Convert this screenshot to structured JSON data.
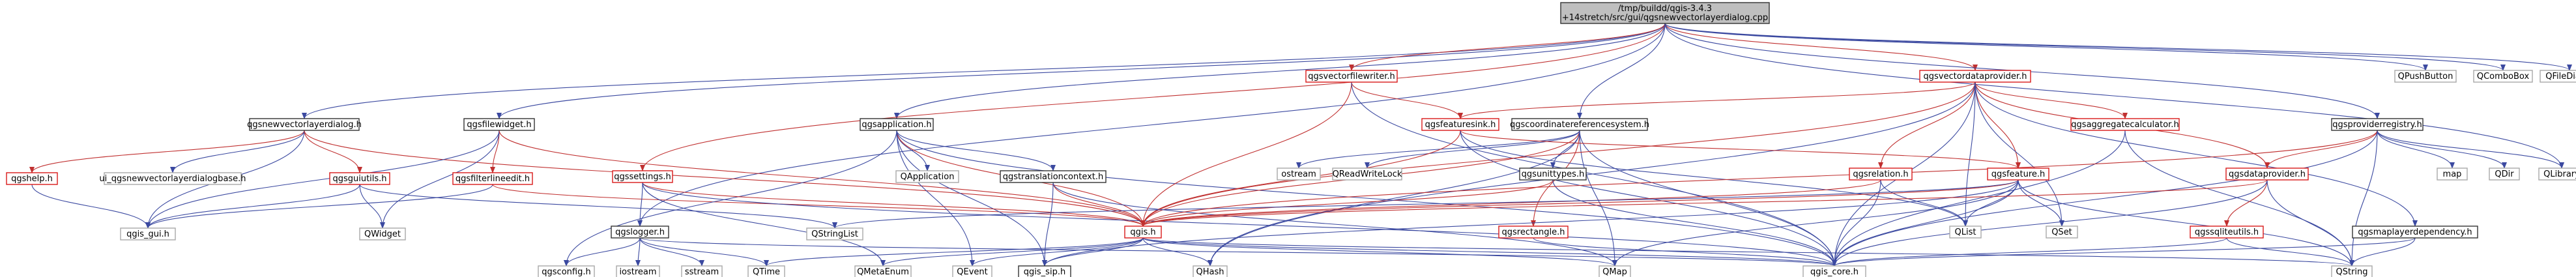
{
  "colors": {
    "edge": "#3b49a0",
    "edge_red": "#c03030",
    "border_black": "#333333",
    "border_grey": "#a8a8a8",
    "border_red": "#d81a1a",
    "root_fill": "#bfbfbf"
  },
  "graph": {
    "nodes": [
      {
        "id": "root",
        "lines": [
          "/tmp/buildd/qgis-3.4.3",
          "+14stretch/src/gui/qgsnewvectorlayerdialog.cpp"
        ],
        "style": "root"
      },
      {
        "id": "qgsnewvectorlayerdialog_h",
        "lines": [
          "qgsnewvectorlayerdialog.h"
        ],
        "style": "black"
      },
      {
        "id": "qgsfilewidget_h",
        "lines": [
          "qgsfilewidget.h"
        ],
        "style": "black"
      },
      {
        "id": "qgsapplication_h",
        "lines": [
          "qgsapplication.h"
        ],
        "style": "black"
      },
      {
        "id": "qgscoordinatereferencesystem_h",
        "lines": [
          "qgscoordinatereferencesystem.h"
        ],
        "style": "black"
      },
      {
        "id": "qgsvectorfilewriter_h",
        "lines": [
          "qgsvectorfilewriter.h"
        ],
        "style": "red"
      },
      {
        "id": "qgsvectordataprovider_h",
        "lines": [
          "qgsvectordataprovider.h"
        ],
        "style": "red"
      },
      {
        "id": "QPushButton",
        "lines": [
          "QPushButton"
        ],
        "style": "grey"
      },
      {
        "id": "QComboBox",
        "lines": [
          "QComboBox"
        ],
        "style": "grey"
      },
      {
        "id": "QFileDialog",
        "lines": [
          "QFileDialog"
        ],
        "style": "grey"
      },
      {
        "id": "qgshelp_h",
        "lines": [
          "qgshelp.h"
        ],
        "style": "red"
      },
      {
        "id": "ui_qgsnewvectorlayerdialogbase_h",
        "lines": [
          "ui_qgsnewvectorlayerdialogbase.h"
        ],
        "style": "grey"
      },
      {
        "id": "qgsguiutils_h",
        "lines": [
          "qgsguiutils.h"
        ],
        "style": "red"
      },
      {
        "id": "qgsfilterlineedit_h",
        "lines": [
          "qgsfilterlineedit.h"
        ],
        "style": "red"
      },
      {
        "id": "qgssettings_h",
        "lines": [
          "qgssettings.h"
        ],
        "style": "red"
      },
      {
        "id": "QApplication",
        "lines": [
          "QApplication"
        ],
        "style": "grey"
      },
      {
        "id": "qgstranslationcontext_h",
        "lines": [
          "qgstranslationcontext.h"
        ],
        "style": "black"
      },
      {
        "id": "qgsfeaturesink_h",
        "lines": [
          "qgsfeaturesink.h"
        ],
        "style": "red"
      },
      {
        "id": "qgsaggregatecalculator_h",
        "lines": [
          "qgsaggregatecalculator.h"
        ],
        "style": "red"
      },
      {
        "id": "qgsproviderregistry_h",
        "lines": [
          "qgsproviderregistry.h"
        ],
        "style": "black"
      },
      {
        "id": "ostream",
        "lines": [
          "ostream"
        ],
        "style": "grey"
      },
      {
        "id": "QReadWriteLock",
        "lines": [
          "QReadWriteLock"
        ],
        "style": "grey"
      },
      {
        "id": "qgsunittypes_h",
        "lines": [
          "qgsunittypes.h"
        ],
        "style": "black"
      },
      {
        "id": "qgsrelation_h",
        "lines": [
          "qgsrelation.h"
        ],
        "style": "red"
      },
      {
        "id": "qgsfeature_h",
        "lines": [
          "qgsfeature.h"
        ],
        "style": "red"
      },
      {
        "id": "qgsdataprovider_h",
        "lines": [
          "qgsdataprovider.h"
        ],
        "style": "red"
      },
      {
        "id": "map",
        "lines": [
          "map"
        ],
        "style": "grey"
      },
      {
        "id": "QDir",
        "lines": [
          "QDir"
        ],
        "style": "grey"
      },
      {
        "id": "QLibrary",
        "lines": [
          "QLibrary"
        ],
        "style": "grey"
      },
      {
        "id": "qgis_gui_h",
        "lines": [
          "qgis_gui.h"
        ],
        "style": "grey"
      },
      {
        "id": "QWidget",
        "lines": [
          "QWidget"
        ],
        "style": "grey"
      },
      {
        "id": "QStringList",
        "lines": [
          "QStringList"
        ],
        "style": "grey"
      },
      {
        "id": "qgslogger_h",
        "lines": [
          "qgslogger.h"
        ],
        "style": "black"
      },
      {
        "id": "qgis_h",
        "lines": [
          "qgis.h"
        ],
        "style": "red"
      },
      {
        "id": "qgsrectangle_h",
        "lines": [
          "qgsrectangle.h"
        ],
        "style": "red"
      },
      {
        "id": "QList",
        "lines": [
          "QList"
        ],
        "style": "grey"
      },
      {
        "id": "QSet",
        "lines": [
          "QSet"
        ],
        "style": "grey"
      },
      {
        "id": "qgssqliteutils_h",
        "lines": [
          "qgssqliteutils.h"
        ],
        "style": "red"
      },
      {
        "id": "qgsmaplayerdependency_h",
        "lines": [
          "qgsmaplayerdependency.h"
        ],
        "style": "black"
      },
      {
        "id": "qgsconfig_h",
        "lines": [
          "qgsconfig.h"
        ],
        "style": "grey"
      },
      {
        "id": "iostream",
        "lines": [
          "iostream"
        ],
        "style": "grey"
      },
      {
        "id": "sstream",
        "lines": [
          "sstream"
        ],
        "style": "grey"
      },
      {
        "id": "QTime",
        "lines": [
          "QTime"
        ],
        "style": "grey"
      },
      {
        "id": "QMetaEnum",
        "lines": [
          "QMetaEnum"
        ],
        "style": "grey"
      },
      {
        "id": "QEvent",
        "lines": [
          "QEvent"
        ],
        "style": "grey"
      },
      {
        "id": "qgis_sip_h",
        "lines": [
          "qgis_sip.h"
        ],
        "style": "black"
      },
      {
        "id": "QHash",
        "lines": [
          "QHash"
        ],
        "style": "grey"
      },
      {
        "id": "QMap",
        "lines": [
          "QMap"
        ],
        "style": "grey"
      },
      {
        "id": "qgis_core_h",
        "lines": [
          "qgis_core.h"
        ],
        "style": "grey"
      },
      {
        "id": "QString",
        "lines": [
          "QString"
        ],
        "style": "grey"
      }
    ],
    "edges": [
      [
        "root",
        "qgsnewvectorlayerdialog_h"
      ],
      [
        "root",
        "qgsfilewidget_h"
      ],
      [
        "root",
        "qgsapplication_h"
      ],
      [
        "root",
        "qgscoordinatereferencesystem_h"
      ],
      [
        "root",
        "qgsvectorfilewriter_h"
      ],
      [
        "root",
        "qgsvectordataprovider_h"
      ],
      [
        "root",
        "QPushButton"
      ],
      [
        "root",
        "QComboBox"
      ],
      [
        "root",
        "QFileDialog"
      ],
      [
        "root",
        "qgssettings_h"
      ],
      [
        "root",
        "qgslogger_h"
      ],
      [
        "root",
        "qgsproviderregistry_h"
      ],
      [
        "root",
        "QLibrary"
      ],
      [
        "qgsnewvectorlayerdialog_h",
        "qgshelp_h"
      ],
      [
        "qgsnewvectorlayerdialog_h",
        "ui_qgsnewvectorlayerdialogbase_h"
      ],
      [
        "qgsnewvectorlayerdialog_h",
        "qgsguiutils_h"
      ],
      [
        "qgsnewvectorlayerdialog_h",
        "qgis_gui_h"
      ],
      [
        "qgsnewvectorlayerdialog_h",
        "qgis_h"
      ],
      [
        "qgshelp_h",
        "qgis_gui_h"
      ],
      [
        "qgsguiutils_h",
        "qgis_gui_h"
      ],
      [
        "qgsguiutils_h",
        "QWidget"
      ],
      [
        "qgsguiutils_h",
        "QStringList"
      ],
      [
        "qgsfilewidget_h",
        "qgsfilterlineedit_h"
      ],
      [
        "qgsfilewidget_h",
        "QWidget"
      ],
      [
        "qgsfilewidget_h",
        "qgis_gui_h"
      ],
      [
        "qgsfilewidget_h",
        "qgis_h"
      ],
      [
        "qgsfilterlineedit_h",
        "qgis_gui_h"
      ],
      [
        "qgsfilterlineedit_h",
        "qgis_h"
      ],
      [
        "qgsapplication_h",
        "QApplication"
      ],
      [
        "qgsapplication_h",
        "qgstranslationcontext_h"
      ],
      [
        "qgsapplication_h",
        "qgsconfig_h"
      ],
      [
        "qgsapplication_h",
        "qgis_h"
      ],
      [
        "qgsapplication_h",
        "qgis_sip_h"
      ],
      [
        "qgsapplication_h",
        "QEvent"
      ],
      [
        "qgsapplication_h",
        "qgis_core_h"
      ],
      [
        "qgstranslationcontext_h",
        "qgis_h"
      ],
      [
        "qgstranslationcontext_h",
        "qgis_sip_h"
      ],
      [
        "qgstranslationcontext_h",
        "QMap"
      ],
      [
        "qgssettings_h",
        "qgslogger_h"
      ],
      [
        "qgssettings_h",
        "qgis_h"
      ],
      [
        "qgssettings_h",
        "QMetaEnum"
      ],
      [
        "qgssettings_h",
        "qgis_core_h"
      ],
      [
        "qgslogger_h",
        "qgsconfig_h"
      ],
      [
        "qgslogger_h",
        "iostream"
      ],
      [
        "qgslogger_h",
        "sstream"
      ],
      [
        "qgslogger_h",
        "QTime"
      ],
      [
        "qgslogger_h",
        "qgis_core_h"
      ],
      [
        "qgis_h",
        "QTime"
      ],
      [
        "qgis_h",
        "QMetaEnum"
      ],
      [
        "qgis_h",
        "QEvent"
      ],
      [
        "qgis_h",
        "qgis_sip_h"
      ],
      [
        "qgis_h",
        "QHash"
      ],
      [
        "qgis_h",
        "QMap"
      ],
      [
        "qgis_h",
        "qgis_core_h"
      ],
      [
        "qgis_h",
        "QString"
      ],
      [
        "qgscoordinatereferencesystem_h",
        "ostream"
      ],
      [
        "qgscoordinatereferencesystem_h",
        "QReadWriteLock"
      ],
      [
        "qgscoordinatereferencesystem_h",
        "qgsunittypes_h"
      ],
      [
        "qgscoordinatereferencesystem_h",
        "qgsrectangle_h"
      ],
      [
        "qgscoordinatereferencesystem_h",
        "qgis_h"
      ],
      [
        "qgscoordinatereferencesystem_h",
        "QMap"
      ],
      [
        "qgscoordinatereferencesystem_h",
        "QHash"
      ],
      [
        "qgscoordinatereferencesystem_h",
        "qgis_core_h"
      ],
      [
        "qgsunittypes_h",
        "qgis_h"
      ],
      [
        "qgsunittypes_h",
        "qgis_core_h"
      ],
      [
        "qgsrectangle_h",
        "qgis_core_h"
      ],
      [
        "qgsvectorfilewriter_h",
        "qgsfeaturesink_h"
      ],
      [
        "qgsvectorfilewriter_h",
        "qgis_h"
      ],
      [
        "qgsvectorfilewriter_h",
        "qgis_core_h"
      ],
      [
        "qgsvectordataprovider_h",
        "qgsfeaturesink_h"
      ],
      [
        "qgsvectordataprovider_h",
        "qgsaggregatecalculator_h"
      ],
      [
        "qgsvectordataprovider_h",
        "qgsrelation_h"
      ],
      [
        "qgsvectordataprovider_h",
        "qgsfeature_h"
      ],
      [
        "qgsvectordataprovider_h",
        "qgsdataprovider_h"
      ],
      [
        "qgsvectordataprovider_h",
        "qgsmaplayerdependency_h"
      ],
      [
        "qgsvectordataprovider_h",
        "qgis_h"
      ],
      [
        "qgsvectordataprovider_h",
        "QSet"
      ],
      [
        "qgsvectordataprovider_h",
        "QList"
      ],
      [
        "qgsvectordataprovider_h",
        "QHash"
      ],
      [
        "qgsvectordataprovider_h",
        "qgis_core_h"
      ],
      [
        "qgsfeaturesink_h",
        "qgsfeature_h"
      ],
      [
        "qgsfeaturesink_h",
        "qgis_h"
      ],
      [
        "qgsfeaturesink_h",
        "QList"
      ],
      [
        "qgsfeaturesink_h",
        "qgis_core_h"
      ],
      [
        "qgsaggregatecalculator_h",
        "qgis_core_h"
      ],
      [
        "qgsaggregatecalculator_h",
        "QString"
      ],
      [
        "qgsrelation_h",
        "qgis_h"
      ],
      [
        "qgsrelation_h",
        "QList"
      ],
      [
        "qgsrelation_h",
        "qgis_core_h"
      ],
      [
        "qgsfeature_h",
        "qgis_h"
      ],
      [
        "qgsfeature_h",
        "QSet"
      ],
      [
        "qgsfeature_h",
        "QList"
      ],
      [
        "qgsfeature_h",
        "QMap"
      ],
      [
        "qgsfeature_h",
        "qgis_core_h"
      ],
      [
        "qgsfeature_h",
        "QString"
      ],
      [
        "qgsfeature_h",
        "qgis_sip_h"
      ],
      [
        "qgsfeature_h",
        "QStringList"
      ],
      [
        "qgsproviderregistry_h",
        "qgsdataprovider_h"
      ],
      [
        "qgsproviderregistry_h",
        "map"
      ],
      [
        "qgsproviderregistry_h",
        "QDir"
      ],
      [
        "qgsproviderregistry_h",
        "QLibrary"
      ],
      [
        "qgsproviderregistry_h",
        "qgis_core_h"
      ],
      [
        "qgsproviderregistry_h",
        "qgis_h"
      ],
      [
        "qgsproviderregistry_h",
        "QString"
      ],
      [
        "qgsdataprovider_h",
        "qgssqliteutils_h"
      ],
      [
        "qgsdataprovider_h",
        "qgis_core_h"
      ],
      [
        "qgsdataprovider_h",
        "QString"
      ],
      [
        "qgsdataprovider_h",
        "qgis_h"
      ],
      [
        "qgssqliteutils_h",
        "qgis_core_h"
      ],
      [
        "qgssqliteutils_h",
        "QString"
      ],
      [
        "qgsmaplayerdependency_h",
        "qgis_core_h"
      ],
      [
        "qgsmaplayerdependency_h",
        "QString"
      ]
    ]
  }
}
